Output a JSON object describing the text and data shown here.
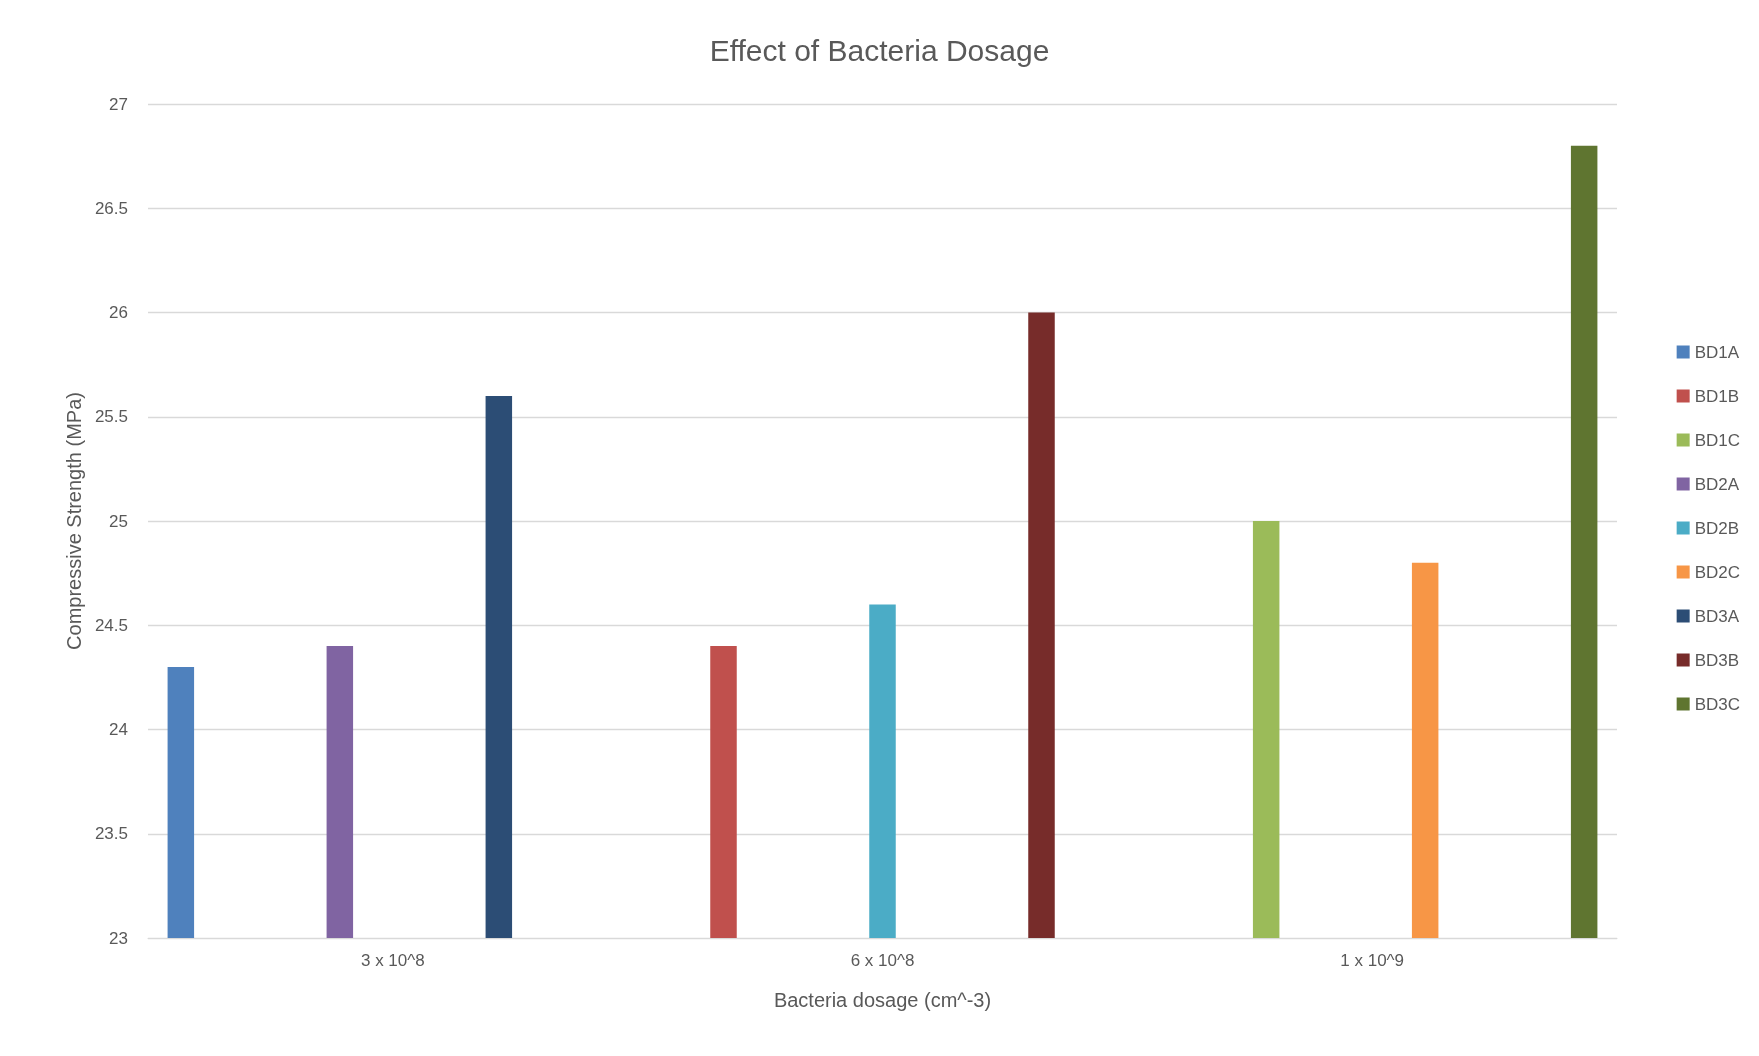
{
  "chart_data": {
    "type": "bar",
    "title": "Effect of Bacteria Dosage",
    "xlabel": "Bacteria dosage (cm^-3)",
    "ylabel": "Compressive Strength (MPa)",
    "categories": [
      "3 x 10^8",
      "6 x 10^8",
      "1 x 10^9"
    ],
    "series": [
      {
        "name": "BD1A",
        "color": "#4f81bd",
        "values": [
          24.3,
          null,
          null
        ]
      },
      {
        "name": "BD1B",
        "color": "#c0504d",
        "values": [
          null,
          24.4,
          null
        ]
      },
      {
        "name": "BD1C",
        "color": "#9bbb59",
        "values": [
          null,
          null,
          25.0
        ]
      },
      {
        "name": "BD2A",
        "color": "#8064a2",
        "values": [
          24.4,
          null,
          null
        ]
      },
      {
        "name": "BD2B",
        "color": "#4bacc6",
        "values": [
          null,
          24.6,
          null
        ]
      },
      {
        "name": "BD2C",
        "color": "#f79646",
        "values": [
          null,
          null,
          24.8
        ]
      },
      {
        "name": "BD3A",
        "color": "#2c4d75",
        "values": [
          25.6,
          null,
          null
        ]
      },
      {
        "name": "BD3B",
        "color": "#772c2a",
        "values": [
          null,
          26.0,
          null
        ]
      },
      {
        "name": "BD3C",
        "color": "#5f7530",
        "values": [
          null,
          null,
          26.8
        ]
      }
    ],
    "ylim": [
      23,
      27
    ],
    "yticks": [
      23,
      23.5,
      24,
      24.5,
      25,
      25.5,
      26,
      26.5,
      27
    ],
    "grid": "y",
    "legend": "right"
  }
}
